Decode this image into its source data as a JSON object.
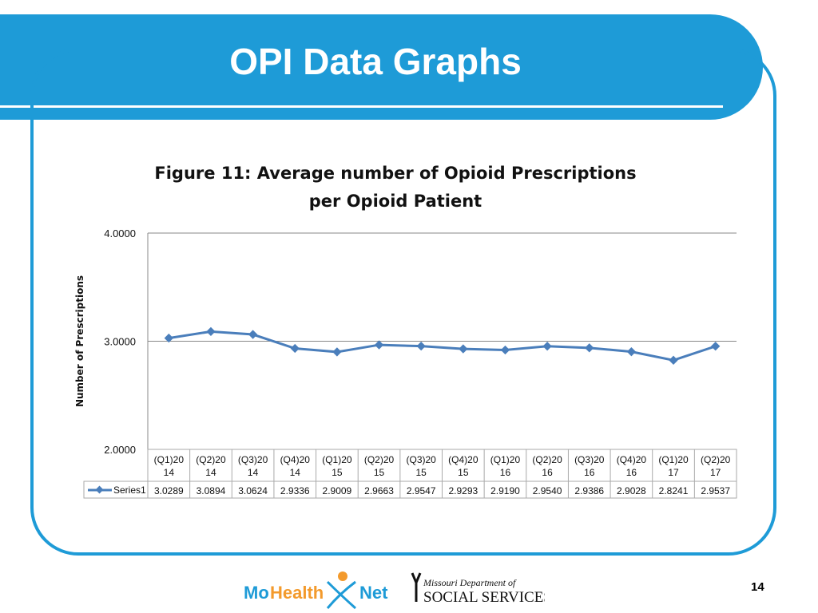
{
  "header": {
    "title": "OPI Data Graphs"
  },
  "footer": {
    "page_number": "14",
    "logo_left": "MoHealthNet",
    "logo_right_top": "Missouri Department of",
    "logo_right_bottom": "SOCIAL SERVICES"
  },
  "colors": {
    "band": "#1e9bd7",
    "series": "#4a7ebb"
  },
  "chart_data": {
    "type": "line",
    "title": "Figure 11: Average number of Opioid Prescriptions per Opioid Patient",
    "ylabel": "Number of Prescriptions",
    "ylim": [
      2,
      4
    ],
    "yticks": [
      "2.0000",
      "3.0000",
      "4.0000"
    ],
    "grid": true,
    "legend": "data-table",
    "categories": [
      [
        "(Q1)20",
        "14"
      ],
      [
        "(Q2)20",
        "14"
      ],
      [
        "(Q3)20",
        "14"
      ],
      [
        "(Q4)20",
        "14"
      ],
      [
        "(Q1)20",
        "15"
      ],
      [
        "(Q2)20",
        "15"
      ],
      [
        "(Q3)20",
        "15"
      ],
      [
        "(Q4)20",
        "15"
      ],
      [
        "(Q1)20",
        "16"
      ],
      [
        "(Q2)20",
        "16"
      ],
      [
        "(Q3)20",
        "16"
      ],
      [
        "(Q4)20",
        "16"
      ],
      [
        "(Q1)20",
        "17"
      ],
      [
        "(Q2)20",
        "17"
      ]
    ],
    "series": [
      {
        "name": "Series1",
        "values": [
          "3.0289",
          "3.0894",
          "3.0624",
          "2.9336",
          "2.9009",
          "2.9663",
          "2.9547",
          "2.9293",
          "2.9190",
          "2.9540",
          "2.9386",
          "2.9028",
          "2.8241",
          "2.9537"
        ]
      }
    ]
  }
}
